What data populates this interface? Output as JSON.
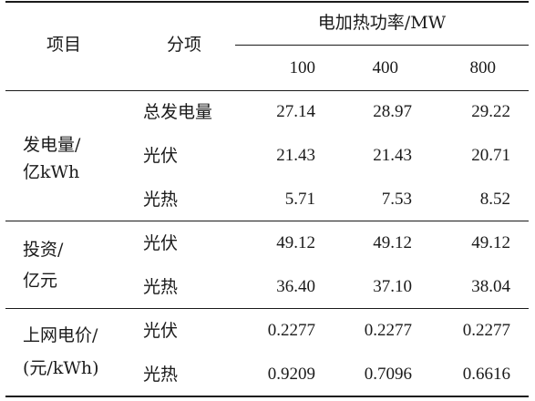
{
  "header": {
    "item": "项目",
    "sub_item": "分项",
    "group_title": "电加热功率/MW",
    "levels": [
      "100",
      "400",
      "800"
    ]
  },
  "groups": [
    {
      "label_line1": "发电量/",
      "label_line2": "亿kWh",
      "rows": [
        {
          "sub": "总发电量",
          "values": [
            "27.14",
            "28.97",
            "29.22"
          ]
        },
        {
          "sub": "光伏",
          "values": [
            "21.43",
            "21.43",
            "20.71"
          ]
        },
        {
          "sub": "光热",
          "values": [
            "5.71",
            "7.53",
            "8.52"
          ]
        }
      ]
    },
    {
      "label_line1": "投资/",
      "label_line2": "亿元",
      "rows": [
        {
          "sub": "光伏",
          "values": [
            "49.12",
            "49.12",
            "49.12"
          ]
        },
        {
          "sub": "光热",
          "values": [
            "36.40",
            "37.10",
            "38.04"
          ]
        }
      ]
    },
    {
      "label_line1": "上网电价/",
      "label_line2": "(元/kWh)",
      "rows": [
        {
          "sub": "光伏",
          "values": [
            "0.2277",
            "0.2277",
            "0.2277"
          ]
        },
        {
          "sub": "光热",
          "values": [
            "0.9209",
            "0.7096",
            "0.6616"
          ]
        }
      ]
    }
  ]
}
